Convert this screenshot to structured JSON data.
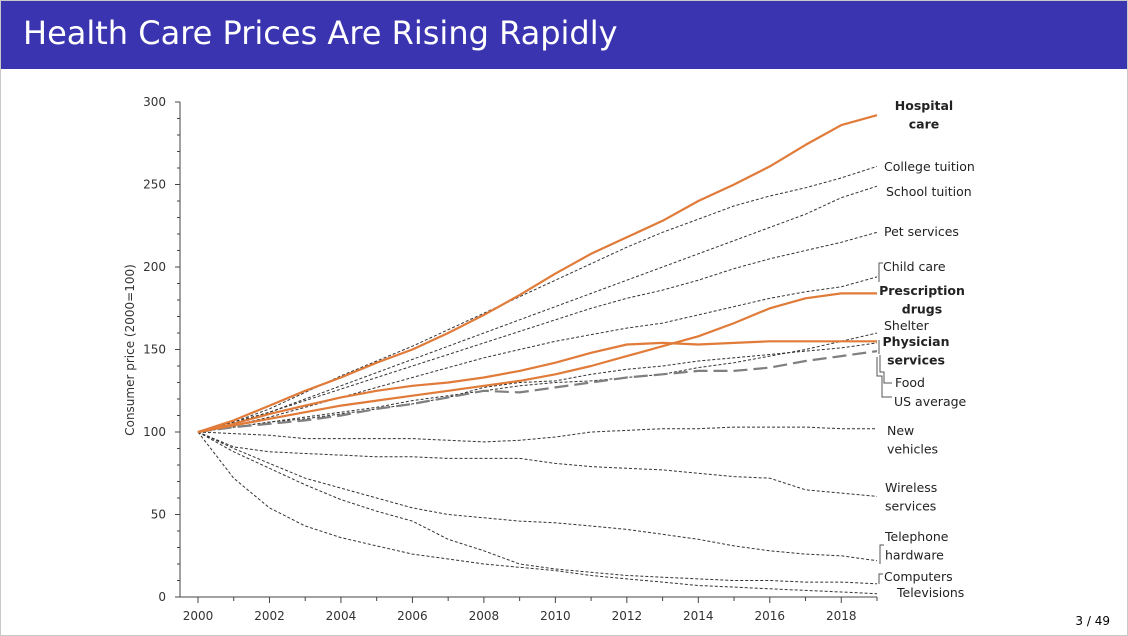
{
  "slide": {
    "title": "Health Care Prices Are Rising Rapidly",
    "page_number": "3 / 49",
    "title_bar_color": "#3a34b0"
  },
  "chart_data": {
    "type": "line",
    "title": "",
    "xlabel": "",
    "ylabel": "Consumer price (2000=100)",
    "xlim": [
      2000,
      2019
    ],
    "ylim": [
      0,
      300
    ],
    "x_ticks": [
      2000,
      2002,
      2004,
      2006,
      2008,
      2010,
      2012,
      2014,
      2016,
      2018
    ],
    "y_ticks": [
      0,
      50,
      100,
      150,
      200,
      250,
      300
    ],
    "grid": false,
    "legend": "direct labels at right end of each line",
    "x": [
      2000,
      2001,
      2002,
      2003,
      2004,
      2005,
      2006,
      2007,
      2008,
      2009,
      2010,
      2011,
      2012,
      2013,
      2014,
      2015,
      2016,
      2017,
      2018,
      2019
    ],
    "series": [
      {
        "name": "Hospital care",
        "label_lines": [
          "Hospital",
          "care"
        ],
        "bold": true,
        "style": "health",
        "color": "#e07b39",
        "values": [
          100,
          107,
          116,
          125,
          133,
          142,
          150,
          160,
          171,
          183,
          196,
          208,
          218,
          228,
          240,
          250,
          261,
          274,
          286,
          292
        ]
      },
      {
        "name": "College tuition",
        "label_lines": [
          "College tuition"
        ],
        "style": "dotted",
        "color": "#333333",
        "values": [
          100,
          106,
          114,
          124,
          134,
          143,
          152,
          162,
          172,
          182,
          192,
          202,
          212,
          221,
          229,
          237,
          243,
          248,
          254,
          261
        ]
      },
      {
        "name": "School tuition",
        "label_lines": [
          "School tuition"
        ],
        "style": "dotted",
        "color": "#333333",
        "values": [
          100,
          106,
          112,
          120,
          128,
          136,
          144,
          152,
          160,
          168,
          176,
          184,
          192,
          200,
          208,
          216,
          224,
          232,
          242,
          249
        ]
      },
      {
        "name": "Pet services",
        "label_lines": [
          "Pet services"
        ],
        "style": "dotted",
        "color": "#333333",
        "values": [
          100,
          105,
          112,
          119,
          126,
          133,
          140,
          147,
          154,
          161,
          168,
          175,
          181,
          186,
          192,
          199,
          205,
          210,
          215,
          221
        ]
      },
      {
        "name": "Child care",
        "label_lines": [
          "Child care"
        ],
        "style": "dotted",
        "color": "#333333",
        "values": [
          100,
          104,
          109,
          115,
          121,
          127,
          133,
          139,
          145,
          150,
          155,
          159,
          163,
          166,
          171,
          176,
          181,
          185,
          188,
          194
        ]
      },
      {
        "name": "Prescription drugs",
        "label_lines": [
          "Prescription",
          "drugs"
        ],
        "bold": true,
        "style": "health",
        "color": "#e07b39",
        "values": [
          100,
          104,
          108,
          112,
          116,
          119,
          122,
          125,
          128,
          131,
          135,
          140,
          146,
          152,
          158,
          166,
          175,
          181,
          184,
          184
        ]
      },
      {
        "name": "Shelter",
        "label_lines": [
          "Shelter"
        ],
        "style": "dotted",
        "color": "#333333",
        "values": [
          100,
          103,
          106,
          109,
          112,
          115,
          119,
          122,
          125,
          128,
          130,
          131,
          133,
          135,
          139,
          142,
          146,
          150,
          155,
          160
        ]
      },
      {
        "name": "Physician services",
        "label_lines": [
          "Physician",
          "services"
        ],
        "bold": true,
        "style": "health",
        "color": "#e07b39",
        "values": [
          100,
          105,
          111,
          116,
          121,
          125,
          128,
          130,
          133,
          137,
          142,
          148,
          153,
          154,
          153,
          154,
          155,
          155,
          155,
          155
        ]
      },
      {
        "name": "Food",
        "label_lines": [
          "Food"
        ],
        "style": "dotted",
        "color": "#333333",
        "values": [
          100,
          103,
          106,
          108,
          111,
          114,
          117,
          121,
          127,
          130,
          131,
          135,
          138,
          140,
          143,
          145,
          147,
          149,
          151,
          154
        ]
      },
      {
        "name": "US average",
        "label_lines": [
          "US average"
        ],
        "style": "dashed",
        "color": "#7f7f7f",
        "values": [
          100,
          103,
          105,
          107,
          110,
          114,
          117,
          121,
          125,
          124,
          127,
          130,
          133,
          135,
          137,
          137,
          139,
          143,
          146,
          149
        ]
      },
      {
        "name": "New vehicles",
        "label_lines": [
          "New",
          "vehicles"
        ],
        "style": "dotted",
        "color": "#333333",
        "values": [
          100,
          99,
          98,
          96,
          96,
          96,
          96,
          95,
          94,
          95,
          97,
          100,
          101,
          102,
          102,
          103,
          103,
          103,
          102,
          102
        ]
      },
      {
        "name": "Wireless services",
        "label_lines": [
          "Wireless",
          "services"
        ],
        "style": "dotted",
        "color": "#333333",
        "values": [
          100,
          91,
          88,
          87,
          86,
          85,
          85,
          84,
          84,
          84,
          81,
          79,
          78,
          77,
          75,
          73,
          72,
          65,
          63,
          61
        ]
      },
      {
        "name": "Telephone hardware",
        "label_lines": [
          "Telephone",
          "hardware"
        ],
        "style": "dotted",
        "color": "#333333",
        "values": [
          100,
          90,
          81,
          72,
          66,
          60,
          54,
          50,
          48,
          46,
          45,
          43,
          41,
          38,
          35,
          31,
          28,
          26,
          25,
          22
        ]
      },
      {
        "name": "Computers",
        "label_lines": [
          "Computers"
        ],
        "style": "dotted",
        "color": "#333333",
        "values": [
          100,
          88,
          78,
          68,
          59,
          52,
          46,
          35,
          28,
          20,
          17,
          15,
          13,
          12,
          11,
          10,
          10,
          9,
          9,
          8
        ]
      },
      {
        "name": "Televisions",
        "label_lines": [
          "Televisions"
        ],
        "style": "dotted",
        "color": "#333333",
        "values": [
          100,
          72,
          54,
          43,
          36,
          31,
          26,
          23,
          20,
          18,
          16,
          13,
          11,
          9,
          7,
          6,
          5,
          4,
          3,
          2
        ]
      }
    ]
  }
}
